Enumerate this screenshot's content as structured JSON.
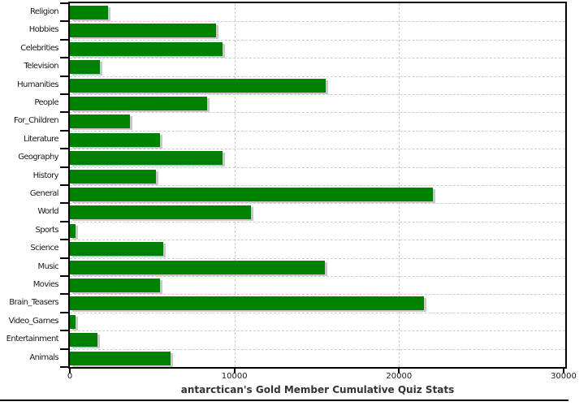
{
  "chart_data": {
    "type": "bar",
    "orientation": "horizontal",
    "title": "antarctican's Gold Member Cumulative Quiz Stats",
    "xlabel": "",
    "ylabel": "",
    "categories": [
      "Religion",
      "Hobbies",
      "Celebrities",
      "Television",
      "Humanities",
      "People",
      "For_Children",
      "Literature",
      "Geography",
      "History",
      "General",
      "World",
      "Sports",
      "Science",
      "Music",
      "Movies",
      "Brain_Teasers",
      "Video_Games",
      "Entertainment",
      "Animals"
    ],
    "values": [
      2330,
      8880,
      9290,
      1810,
      15540,
      8350,
      3650,
      5480,
      9260,
      5230,
      22040,
      10990,
      360,
      5660,
      15510,
      5480,
      21510,
      330,
      1690,
      6130
    ],
    "xlim": [
      0,
      30100
    ],
    "x_ticks": [
      0,
      10000,
      20000,
      30000
    ],
    "x_tick_labels": [
      "0",
      "10000",
      "20000",
      "30000"
    ],
    "grid": "dashed",
    "legend": "none",
    "colors": {
      "bar": "#008000",
      "bar_shadow": "#c9c9c9",
      "grid": "#cccccc",
      "axis": "#000000",
      "tick_text": "#1a1a1a",
      "title_text": "#333333"
    }
  }
}
